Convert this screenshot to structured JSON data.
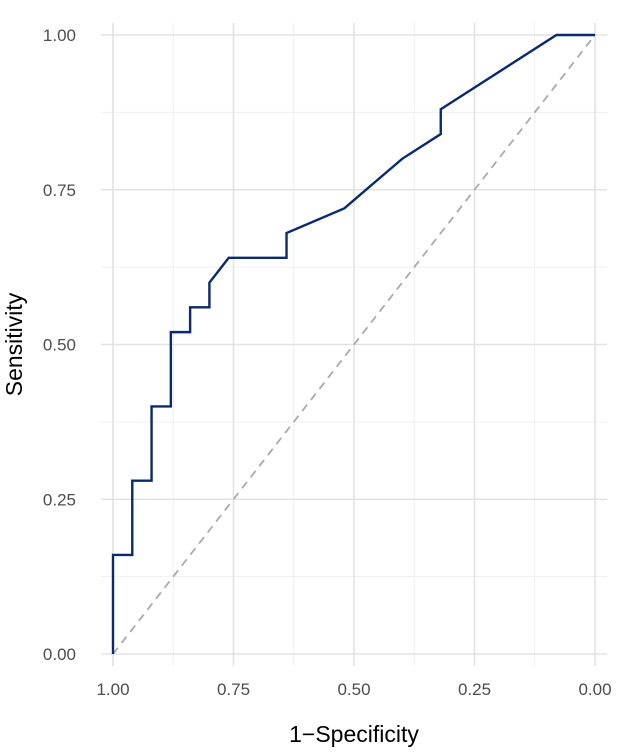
{
  "chart_data": {
    "type": "line",
    "title": "",
    "xlabel": "1−Specificity",
    "ylabel": "Sensitivity",
    "x_reversed": true,
    "xlim": [
      1.0,
      0.0
    ],
    "ylim": [
      0.0,
      1.0
    ],
    "x_ticks": [
      1.0,
      0.75,
      0.5,
      0.25,
      0.0
    ],
    "x_tick_labels": [
      "1.00",
      "0.75",
      "0.50",
      "0.25",
      "0.00"
    ],
    "y_ticks": [
      0.0,
      0.25,
      0.5,
      0.75,
      1.0
    ],
    "y_tick_labels": [
      "0.00",
      "0.25",
      "0.50",
      "0.75",
      "1.00"
    ],
    "grid": true,
    "legend": "none",
    "series": [
      {
        "color": "#0a2a6e",
        "style": "solid",
        "x": [
          1.0,
          1.0,
          0.96,
          0.96,
          0.92,
          0.92,
          0.88,
          0.88,
          0.84,
          0.84,
          0.8,
          0.8,
          0.76,
          0.64,
          0.64,
          0.52,
          0.4,
          0.32,
          0.32,
          0.08,
          0.0
        ],
        "y": [
          0.0,
          0.16,
          0.16,
          0.28,
          0.28,
          0.4,
          0.4,
          0.52,
          0.52,
          0.56,
          0.56,
          0.6,
          0.64,
          0.64,
          0.68,
          0.72,
          0.8,
          0.84,
          0.88,
          1.0,
          1.0
        ]
      },
      {
        "color": "#aaaaaa",
        "style": "dashed",
        "x": [
          1.0,
          0.0
        ],
        "y": [
          0.0,
          1.0
        ]
      }
    ]
  }
}
